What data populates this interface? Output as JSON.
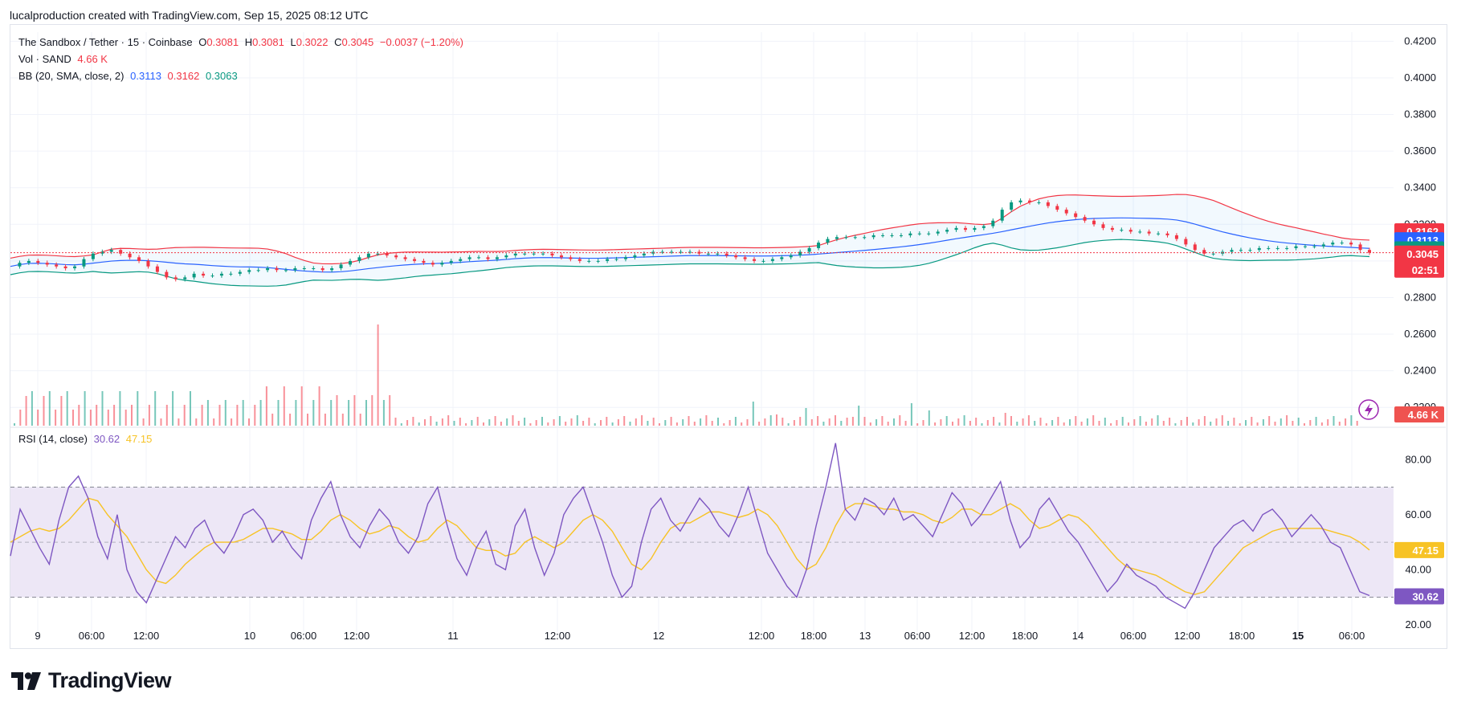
{
  "header": {
    "attribution": "lucalproduction created with TradingView.com, Sep 15, 2025 08:12 UTC"
  },
  "legend": {
    "symbol": "The Sandbox / Tether · 15 · Coinbase",
    "o_label": "O",
    "o_value": "0.3081",
    "h_label": "H",
    "h_value": "0.3081",
    "l_label": "L",
    "l_value": "0.3022",
    "c_label": "C",
    "c_value": "0.3045",
    "change": "−0.0037 (−1.20%)",
    "vol_label": "Vol · SAND",
    "vol_value": "4.66 K",
    "bb_label": "BB (20, SMA, close, 2)",
    "bb_basis": "0.3113",
    "bb_upper": "0.3162",
    "bb_lower": "0.3063",
    "rsi_label": "RSI (14, close)",
    "rsi_value": "30.62",
    "rsi_ma": "47.15"
  },
  "badges": {
    "bb_upper": "0.3162",
    "bb_basis": "0.3113",
    "bb_lower": "0.3063",
    "price": "0.3045",
    "countdown": "02:51",
    "volume": "4.66 K",
    "rsi": "30.62",
    "rsi_ma": "47.15"
  },
  "colors": {
    "up": "#089981",
    "down": "#f23645",
    "bb_basis": "#2962ff",
    "bb_upper": "#f23645",
    "bb_lower": "#089981",
    "rsi": "#7e57c2",
    "rsi_ma": "#f7c325",
    "rsi_band": "#ede7f6",
    "grid": "#f0f3fa"
  },
  "footer": {
    "brand": "TradingView",
    "logo_icon": "tradingview-logo-icon"
  },
  "chart_data": [
    {
      "type": "candlestick",
      "title": "The Sandbox / Tether · 15 · Coinbase",
      "ylim": [
        0.21,
        0.425
      ],
      "yticks": [
        "0.4200",
        "0.4000",
        "0.3800",
        "0.3600",
        "0.3400",
        "0.3200",
        "0.3000",
        "0.2800",
        "0.2600",
        "0.2400",
        "0.2200"
      ],
      "xticks": [
        "9",
        "06:00",
        "12:00",
        "10",
        "06:00",
        "12:00",
        "11",
        "12:00",
        "12",
        "12:00",
        "18:00",
        "13",
        "06:00",
        "12:00",
        "18:00",
        "14",
        "06:00",
        "12:00",
        "18:00",
        "15",
        "06:00"
      ],
      "close_series": [
        0.297,
        0.299,
        0.3,
        0.299,
        0.298,
        0.297,
        0.296,
        0.297,
        0.301,
        0.304,
        0.305,
        0.306,
        0.304,
        0.302,
        0.3,
        0.297,
        0.294,
        0.291,
        0.29,
        0.291,
        0.293,
        0.292,
        0.292,
        0.293,
        0.293,
        0.294,
        0.295,
        0.295,
        0.296,
        0.295,
        0.295,
        0.296,
        0.296,
        0.296,
        0.295,
        0.296,
        0.298,
        0.3,
        0.302,
        0.304,
        0.304,
        0.303,
        0.302,
        0.301,
        0.3,
        0.299,
        0.298,
        0.299,
        0.3,
        0.301,
        0.302,
        0.302,
        0.301,
        0.302,
        0.303,
        0.304,
        0.304,
        0.304,
        0.304,
        0.303,
        0.302,
        0.301,
        0.3,
        0.3,
        0.3,
        0.301,
        0.301,
        0.302,
        0.303,
        0.304,
        0.305,
        0.305,
        0.305,
        0.305,
        0.305,
        0.304,
        0.304,
        0.304,
        0.303,
        0.302,
        0.301,
        0.3,
        0.3,
        0.301,
        0.302,
        0.303,
        0.305,
        0.307,
        0.31,
        0.312,
        0.313,
        0.313,
        0.313,
        0.313,
        0.314,
        0.314,
        0.314,
        0.314,
        0.315,
        0.315,
        0.315,
        0.316,
        0.317,
        0.318,
        0.317,
        0.318,
        0.319,
        0.322,
        0.328,
        0.332,
        0.333,
        0.332,
        0.332,
        0.33,
        0.328,
        0.326,
        0.324,
        0.322,
        0.32,
        0.318,
        0.317,
        0.317,
        0.316,
        0.316,
        0.315,
        0.315,
        0.314,
        0.312,
        0.309,
        0.306,
        0.304,
        0.304,
        0.305,
        0.306,
        0.306,
        0.306,
        0.307,
        0.307,
        0.307,
        0.307,
        0.308,
        0.308,
        0.308,
        0.309,
        0.31,
        0.31,
        0.309,
        0.306,
        0.3045
      ],
      "bb_upper": "0.3162",
      "bb_basis": "0.3113",
      "bb_lower": "0.3063",
      "last_price": 0.3045
    },
    {
      "type": "bar",
      "title": "Vol · SAND",
      "last_value": "4.66 K"
    },
    {
      "type": "line",
      "title": "RSI (14, close)",
      "ylim": [
        15,
        90
      ],
      "yticks": [
        "80.00",
        "60.00",
        "40.00",
        "20.00"
      ],
      "bands": [
        70,
        50,
        30
      ],
      "series": [
        {
          "name": "RSI",
          "values": [
            45,
            62,
            55,
            48,
            42,
            58,
            70,
            74,
            66,
            52,
            44,
            60,
            40,
            32,
            28,
            36,
            44,
            52,
            48,
            55,
            58,
            50,
            46,
            52,
            60,
            62,
            58,
            50,
            54,
            48,
            44,
            58,
            66,
            72,
            60,
            52,
            48,
            56,
            62,
            58,
            50,
            46,
            52,
            64,
            70,
            56,
            44,
            38,
            48,
            54,
            42,
            40,
            56,
            62,
            48,
            38,
            46,
            60,
            66,
            70,
            60,
            50,
            38,
            30,
            34,
            50,
            62,
            66,
            58,
            54,
            60,
            66,
            62,
            56,
            52,
            60,
            70,
            58,
            46,
            40,
            34,
            30,
            40,
            56,
            70,
            86,
            62,
            58,
            66,
            64,
            60,
            66,
            58,
            60,
            56,
            52,
            60,
            68,
            64,
            56,
            60,
            66,
            72,
            58,
            48,
            52,
            62,
            66,
            60,
            54,
            50,
            44,
            38,
            32,
            36,
            42,
            38,
            36,
            34,
            30,
            28,
            26,
            32,
            40,
            48,
            52,
            56,
            58,
            54,
            60,
            62,
            58,
            52,
            56,
            60,
            56,
            50,
            48,
            40,
            32,
            30.62
          ]
        },
        {
          "name": "RSI-based MA",
          "values": [
            50,
            52,
            54,
            55,
            54,
            55,
            58,
            62,
            66,
            65,
            60,
            56,
            52,
            46,
            40,
            36,
            35,
            38,
            42,
            45,
            48,
            50,
            50,
            50,
            51,
            53,
            55,
            55,
            54,
            53,
            51,
            51,
            54,
            58,
            60,
            58,
            55,
            53,
            54,
            56,
            55,
            52,
            50,
            51,
            55,
            58,
            56,
            52,
            48,
            47,
            47,
            45,
            46,
            50,
            52,
            50,
            48,
            50,
            54,
            58,
            60,
            58,
            54,
            48,
            42,
            40,
            44,
            50,
            55,
            57,
            57,
            59,
            61,
            61,
            60,
            59,
            60,
            62,
            60,
            56,
            50,
            44,
            40,
            42,
            48,
            56,
            62,
            64,
            64,
            63,
            62,
            62,
            61,
            61,
            60,
            58,
            57,
            59,
            62,
            62,
            60,
            60,
            62,
            64,
            62,
            58,
            55,
            56,
            58,
            60,
            59,
            56,
            52,
            48,
            44,
            41,
            40,
            39,
            38,
            36,
            34,
            32,
            31,
            32,
            36,
            40,
            44,
            48,
            50,
            52,
            54,
            55,
            55,
            55,
            55,
            55,
            54,
            53,
            52,
            50,
            47.15
          ]
        }
      ]
    }
  ]
}
